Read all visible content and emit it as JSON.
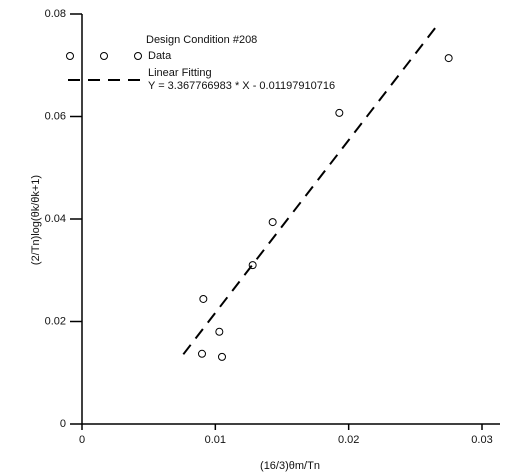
{
  "chart_data": {
    "type": "scatter",
    "legend_title": "Design Condition #208",
    "xlabel": "(16/3)θm/Tn",
    "ylabel": "(2/Tn)log(θk/θk+1)",
    "series": [
      {
        "name": "Data",
        "color": "#000000",
        "style": "markers",
        "x": [
          0.009,
          0.0091,
          0.0103,
          0.0105,
          0.0128,
          0.0143,
          0.0193,
          0.0275
        ],
        "values": [
          0.0137,
          0.0244,
          0.018,
          0.0131,
          0.031,
          0.0394,
          0.0607,
          0.0714
        ]
      },
      {
        "name": "Linear Fitting",
        "equation": "Y = 3.367766983 * X - 0.01197910716",
        "color": "#000000",
        "style": "dashed",
        "x": [
          0.0076,
          0.0265
        ],
        "values": [
          0.0136,
          0.0773
        ]
      }
    ],
    "xlim": [
      0,
      0.03
    ],
    "xticks": [
      0,
      0.01,
      0.02,
      0.03
    ],
    "ylim": [
      0,
      0.08
    ],
    "yticks": [
      0,
      0.02,
      0.04,
      0.06,
      0.08
    ]
  }
}
